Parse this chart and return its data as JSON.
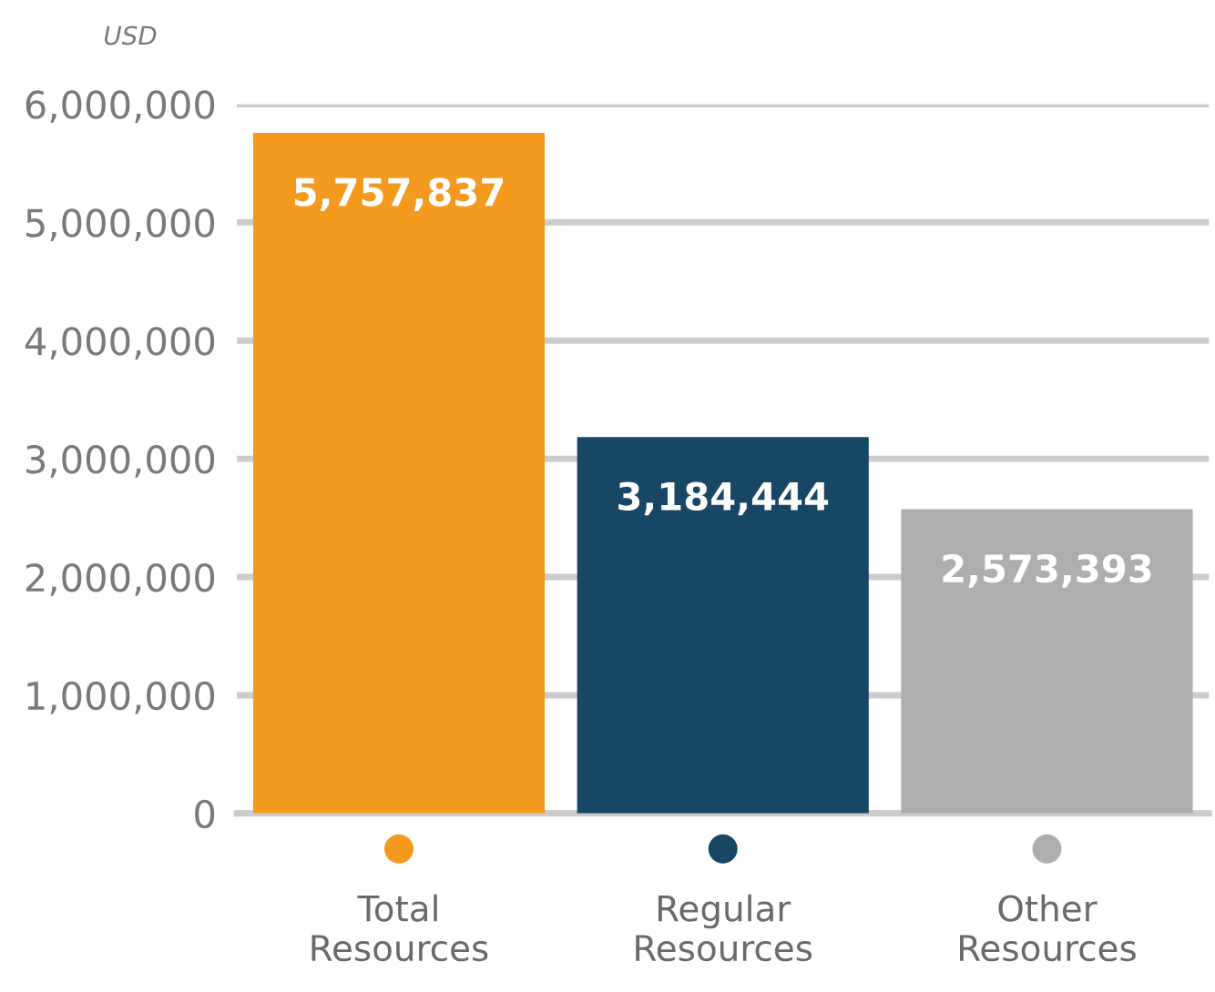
{
  "chart_data": {
    "type": "bar",
    "ylabel": "USD",
    "categories": [
      "Total\nResources",
      "Regular\nResources",
      "Other\nResources"
    ],
    "values": [
      5757837,
      3184444,
      2573393
    ],
    "colors": [
      "#f39a1f",
      "#184766",
      "#aeaeae"
    ],
    "value_labels": [
      "5,757,837",
      "3,184,444",
      "2,573,393"
    ],
    "ylim": [
      0,
      6000000
    ],
    "yticks": [
      {
        "value": 0,
        "label": "0"
      },
      {
        "value": 1000000,
        "label": "1,000,000"
      },
      {
        "value": 2000000,
        "label": "2,000,000"
      },
      {
        "value": 3000000,
        "label": "3,000,000"
      },
      {
        "value": 4000000,
        "label": "4,000,000"
      },
      {
        "value": 5000000,
        "label": "5,000,000"
      },
      {
        "value": 6000000,
        "label": "6,000,000"
      }
    ],
    "grid": "y",
    "legend": false
  }
}
